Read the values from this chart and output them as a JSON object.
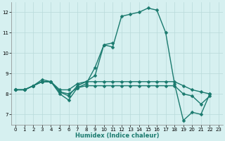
{
  "xlabel": "Humidex (Indice chaleur)",
  "bg_color": "#d6f0f0",
  "grid_color": "#b8dada",
  "line_color": "#1a7a6e",
  "markersize": 2.5,
  "linewidth": 1.0,
  "xlim": [
    -0.5,
    23.5
  ],
  "ylim": [
    6.5,
    12.5
  ],
  "xticks": [
    0,
    1,
    2,
    3,
    4,
    5,
    6,
    7,
    8,
    9,
    10,
    11,
    12,
    13,
    14,
    15,
    16,
    17,
    18,
    19,
    20,
    21,
    22,
    23
  ],
  "yticks": [
    7,
    8,
    9,
    10,
    11,
    12
  ],
  "lines": [
    {
      "x": [
        0,
        1,
        2,
        3,
        4,
        5,
        6,
        7,
        8,
        9,
        10,
        11,
        12,
        13,
        14,
        15,
        16,
        17,
        18,
        19,
        20,
        21,
        22
      ],
      "y": [
        8.2,
        8.2,
        8.4,
        8.6,
        8.6,
        8.0,
        7.7,
        8.3,
        8.5,
        9.3,
        10.4,
        10.3,
        11.8,
        11.9,
        12.0,
        12.2,
        12.1,
        11.0,
        8.5,
        6.7,
        7.1,
        7.0,
        8.0
      ]
    },
    {
      "x": [
        0,
        1,
        2,
        3,
        4,
        5,
        6,
        7,
        8,
        9,
        10,
        11
      ],
      "y": [
        8.2,
        8.2,
        8.4,
        8.6,
        8.6,
        8.1,
        7.9,
        8.4,
        8.6,
        8.9,
        10.4,
        10.5
      ]
    },
    {
      "x": [
        0,
        1,
        2,
        3,
        4,
        5,
        6,
        7,
        8,
        9,
        10,
        11,
        12,
        13,
        14,
        15,
        16,
        17,
        18,
        19,
        20,
        21,
        22
      ],
      "y": [
        8.2,
        8.2,
        8.4,
        8.7,
        8.6,
        8.2,
        8.2,
        8.5,
        8.6,
        8.6,
        8.6,
        8.6,
        8.6,
        8.6,
        8.6,
        8.6,
        8.6,
        8.6,
        8.6,
        8.4,
        8.2,
        8.1,
        8.0
      ]
    },
    {
      "x": [
        0,
        1,
        2,
        3,
        4,
        5,
        6,
        7,
        8,
        9,
        10,
        11,
        12,
        13,
        14,
        15,
        16,
        17,
        18,
        19,
        20,
        21,
        22
      ],
      "y": [
        8.2,
        8.2,
        8.4,
        8.6,
        8.6,
        8.1,
        8.0,
        8.3,
        8.4,
        8.4,
        8.4,
        8.4,
        8.4,
        8.4,
        8.4,
        8.4,
        8.4,
        8.4,
        8.4,
        8.0,
        7.9,
        7.5,
        7.9
      ]
    }
  ]
}
